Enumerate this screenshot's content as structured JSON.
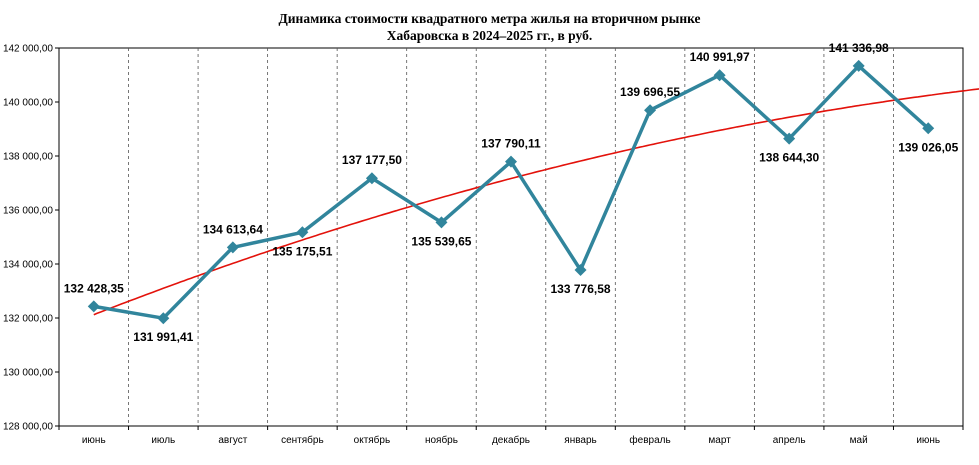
{
  "chart_data": {
    "type": "line",
    "title_line1": "Динамика стоимости квадратного метра жилья на вторичном рынке",
    "title_line2": "Хабаровска в 2024–2025 гг., в руб.",
    "categories": [
      "июнь",
      "июль",
      "август",
      "сентябрь",
      "октябрь",
      "ноябрь",
      "декабрь",
      "январь",
      "февраль",
      "март",
      "апрель",
      "май",
      "июнь"
    ],
    "series": [
      {
        "values": [
          132428.35,
          131991.41,
          134613.64,
          135175.51,
          137177.5,
          135539.65,
          137790.11,
          133776.58,
          139696.55,
          140991.97,
          138644.3,
          141336.98,
          139026.05
        ],
        "labels": [
          "132 428,35",
          "131 991,41",
          "134 613,64",
          "135 175,51",
          "137 177,50",
          "135 539,65",
          "137 790,11",
          "133 776,58",
          "139 696,55",
          "140 991,97",
          "138 644,30",
          "141 336,98",
          "139 026,05"
        ],
        "label_pos": [
          "above",
          "below",
          "above",
          "below",
          "above",
          "below",
          "above",
          "below",
          "above",
          "above",
          "below",
          "above",
          "below"
        ],
        "color": "#31859c"
      }
    ],
    "trendline": {
      "type": "polynomial",
      "color": "#e3120b"
    },
    "yticks": [
      "128 000,00",
      "130 000,00",
      "132 000,00",
      "134 000,00",
      "136 000,00",
      "138 000,00",
      "140 000,00",
      "142 000,00"
    ],
    "ylim": [
      128000,
      142000
    ],
    "grid": "vertical dashed"
  }
}
